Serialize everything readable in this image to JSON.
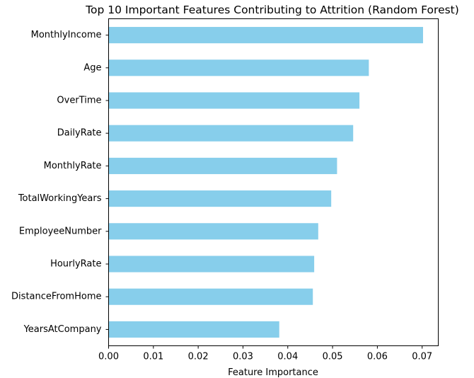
{
  "chart_data": {
    "type": "bar",
    "orientation": "horizontal",
    "title": "Top 10 Important Features Contributing to Attrition (Random Forest)",
    "xlabel": "Feature Importance",
    "ylabel": "",
    "xlim": [
      0,
      0.0736
    ],
    "x_ticks": [
      "0.00",
      "0.01",
      "0.02",
      "0.03",
      "0.04",
      "0.05",
      "0.06",
      "0.07"
    ],
    "grid": false,
    "legend": "none",
    "bar_color": "#87ceeb",
    "categories": [
      "MonthlyIncome",
      "Age",
      "OverTime",
      "DailyRate",
      "MonthlyRate",
      "TotalWorkingYears",
      "EmployeeNumber",
      "HourlyRate",
      "DistanceFromHome",
      "YearsAtCompany"
    ],
    "values": [
      0.0702,
      0.0581,
      0.056,
      0.0546,
      0.051,
      0.0497,
      0.0468,
      0.0459,
      0.0456,
      0.0381
    ]
  }
}
